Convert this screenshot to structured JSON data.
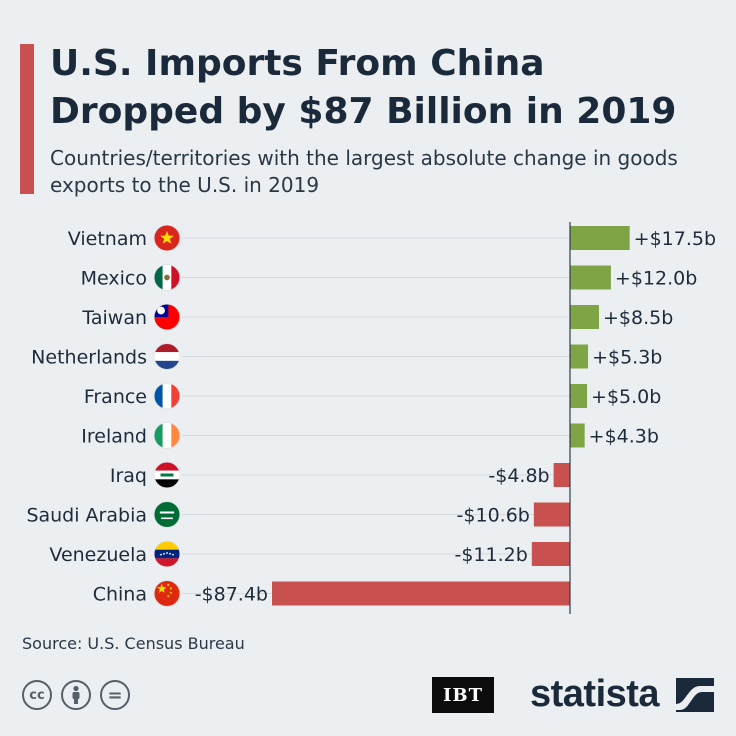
{
  "header": {
    "title": "U.S. Imports From China Dropped by $87 Billion in 2019",
    "subtitle": "Countries/territories with the largest absolute change in goods exports to the U.S. in 2019"
  },
  "chart_data": {
    "type": "bar",
    "orientation": "horizontal",
    "title": "U.S. Imports From China Dropped by $87 Billion in 2019",
    "subtitle": "Countries/territories with the largest absolute change in goods exports to the U.S. in 2019",
    "unit": "billion USD",
    "categories": [
      "Vietnam",
      "Mexico",
      "Taiwan",
      "Netherlands",
      "France",
      "Ireland",
      "Iraq",
      "Saudi Arabia",
      "Venezuela",
      "China"
    ],
    "values": [
      17.5,
      12.0,
      8.5,
      5.3,
      5.0,
      4.3,
      -4.8,
      -10.6,
      -11.2,
      -87.4
    ],
    "data_labels": [
      "+$17.5b",
      "+$12.0b",
      "+$8.5b",
      "+$5.3b",
      "+$5.0b",
      "+$4.3b",
      "-$4.8b",
      "-$10.6b",
      "-$11.2b",
      "-$87.4b"
    ],
    "flags": [
      "vietnam-flag-icon",
      "mexico-flag-icon",
      "taiwan-flag-icon",
      "netherlands-flag-icon",
      "france-flag-icon",
      "ireland-flag-icon",
      "iraq-flag-icon",
      "saudi-arabia-flag-icon",
      "venezuela-flag-icon",
      "china-flag-icon"
    ],
    "positive_color": "#7fa446",
    "negative_color": "#c8504e",
    "grid": true,
    "legend": "none"
  },
  "footer": {
    "source": "Source: U.S. Census Bureau",
    "license_icons": [
      "cc",
      "by",
      "nd"
    ],
    "license_glyphs": [
      "cc",
      "",
      "="
    ],
    "partner_logo": "IBT",
    "brand_logo": "statista"
  }
}
